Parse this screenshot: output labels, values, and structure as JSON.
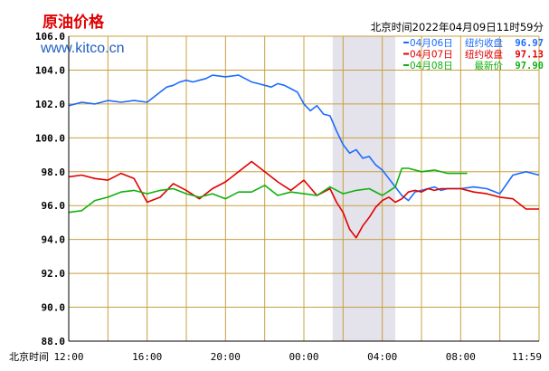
{
  "header": {
    "title": "原油价格",
    "site": "www.kitco.cn",
    "timestamp": "北京时间2022年04月09日11时59分"
  },
  "colors": {
    "background": "#ffffff",
    "grid": "#c8a040",
    "axis": "#000000",
    "shade": "#e4e2ea",
    "title": "#e00000",
    "site": "#2060c0",
    "text": "#000000"
  },
  "legend": [
    {
      "date": "04月06日",
      "label": "纽约收盘",
      "value": "96.97",
      "color": "#1a6cff"
    },
    {
      "date": "04月07日",
      "label": "纽约收盘",
      "value": "97.13",
      "color": "#e00000"
    },
    {
      "date": "04月08日",
      "label": "最新价",
      "value": "97.90",
      "color": "#10b010"
    }
  ],
  "chart_data": {
    "type": "line",
    "xlabel": "北京时间",
    "x_ticks": [
      "12:00",
      "16:00",
      "20:00",
      "00:00",
      "04:00",
      "08:00",
      "11:59"
    ],
    "ylim": [
      88,
      106
    ],
    "y_ticks": [
      "88.0",
      "90.0",
      "92.0",
      "94.0",
      "96.0",
      "98.0",
      "100.0",
      "102.0",
      "104.0",
      "106.0"
    ],
    "grid": true,
    "legend_position": "top-right",
    "shaded_x_range": [
      20.2,
      25.0
    ],
    "series": [
      {
        "name": "04月06日",
        "color": "#1a6cff",
        "x": [
          0,
          1,
          2,
          3,
          4,
          5,
          6,
          6.5,
          7,
          7.5,
          8,
          8.5,
          9,
          9.5,
          10,
          10.5,
          11,
          12,
          13,
          14,
          14.5,
          15,
          15.5,
          16,
          16.5,
          17,
          17.5,
          18,
          18.5,
          19,
          19.5,
          20,
          20.5,
          21,
          21.5,
          22,
          22.5,
          23,
          23.5,
          24,
          24.5,
          25,
          25.5,
          26,
          26.5,
          27,
          27.5,
          28,
          28.5,
          29,
          30,
          31,
          32,
          33,
          34,
          35,
          36
        ],
        "values": [
          101.9,
          102.1,
          102.0,
          102.2,
          102.1,
          102.2,
          102.1,
          102.4,
          102.7,
          103.0,
          103.1,
          103.3,
          103.4,
          103.3,
          103.4,
          103.5,
          103.7,
          103.6,
          103.7,
          103.3,
          103.2,
          103.1,
          103.0,
          103.2,
          103.1,
          102.9,
          102.7,
          102.0,
          101.6,
          101.9,
          101.4,
          101.3,
          100.4,
          99.6,
          99.1,
          99.3,
          98.8,
          98.9,
          98.4,
          98.1,
          97.6,
          97.1,
          96.6,
          96.3,
          96.8,
          96.9,
          97.0,
          97.1,
          96.9,
          97.0,
          97.0,
          97.1,
          97.0,
          96.7,
          97.8,
          98.0,
          97.8
        ]
      },
      {
        "name": "04月07日",
        "color": "#e00000",
        "x": [
          0,
          1,
          2,
          3,
          4,
          5,
          6,
          7,
          8,
          9,
          10,
          11,
          12,
          13,
          14,
          15,
          16,
          17,
          18,
          19,
          20,
          20.5,
          21,
          21.5,
          22,
          22.5,
          23,
          23.5,
          24,
          24.5,
          25,
          25.5,
          26,
          26.5,
          27,
          27.5,
          28,
          28.5,
          29,
          30,
          31,
          32,
          33,
          34,
          35,
          36
        ],
        "values": [
          97.7,
          97.8,
          97.6,
          97.5,
          97.9,
          97.6,
          96.2,
          96.5,
          97.3,
          96.9,
          96.4,
          97.0,
          97.4,
          98.0,
          98.6,
          98.0,
          97.4,
          96.9,
          97.5,
          96.6,
          97.0,
          96.2,
          95.6,
          94.6,
          94.1,
          94.8,
          95.3,
          95.9,
          96.3,
          96.5,
          96.2,
          96.4,
          96.8,
          96.9,
          96.8,
          97.0,
          96.9,
          97.0,
          97.0,
          97.0,
          96.8,
          96.7,
          96.5,
          96.4,
          95.8,
          95.8
        ]
      },
      {
        "name": "04月08日",
        "color": "#10b010",
        "x": [
          0,
          1,
          2,
          3,
          4,
          5,
          6,
          7,
          8,
          9,
          10,
          11,
          12,
          13,
          14,
          15,
          16,
          17,
          18,
          19,
          20,
          21,
          22,
          23,
          24,
          25,
          25.5,
          26,
          27,
          28,
          29,
          30,
          30.5
        ],
        "values": [
          95.6,
          95.7,
          96.3,
          96.5,
          96.8,
          96.9,
          96.7,
          96.9,
          97.0,
          96.7,
          96.5,
          96.7,
          96.4,
          96.8,
          96.8,
          97.2,
          96.6,
          96.8,
          96.7,
          96.6,
          97.1,
          96.7,
          96.9,
          97.0,
          96.6,
          97.1,
          98.2,
          98.2,
          98.0,
          98.1,
          97.9,
          97.9,
          97.9
        ]
      }
    ]
  }
}
